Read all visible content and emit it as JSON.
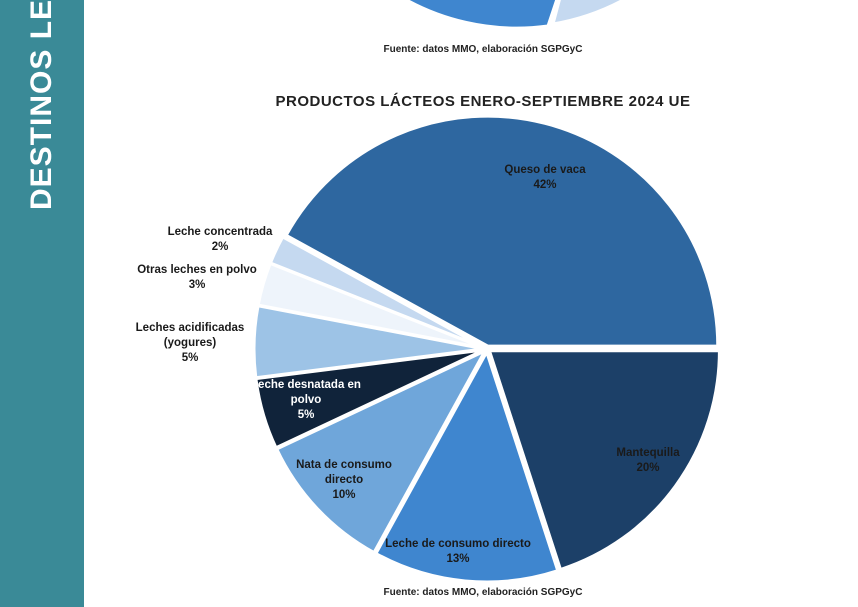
{
  "sidebar": {
    "title": "DESTINOS LEC"
  },
  "top_source": "Fuente: datos MMO, elaboración SGPGyC",
  "chart_data": {
    "type": "pie",
    "title": "PRODUCTOS LÁCTEOS ENERO-SEPTIEMBRE 2024 UE",
    "categories": [
      "Queso de vaca",
      "Mantequilla",
      "Leche de consumo directo",
      "Nata de consumo directo",
      "Leche desnatada en polvo",
      "Leches acidificadas (yogures)",
      "Otras leches en polvo",
      "Leche concentrada"
    ],
    "values": [
      42,
      20,
      13,
      10,
      5,
      5,
      3,
      2
    ],
    "value_labels": [
      "42%",
      "20%",
      "13%",
      "10%",
      "5%",
      "5%",
      "3%",
      "2%"
    ],
    "colors": [
      "#2e67a0",
      "#1c4068",
      "#3f86cf",
      "#6fa6da",
      "#10233a",
      "#9dc3e6",
      "#eef4fb",
      "#c5d9f0"
    ],
    "source": "Fuente: datos MMO, elaboración SGPGyC"
  }
}
